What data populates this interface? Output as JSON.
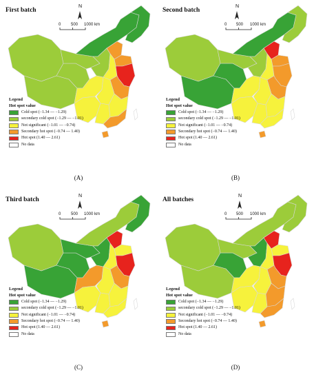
{
  "panels": [
    {
      "title": "First batch",
      "label": "(A)"
    },
    {
      "title": "Second batch",
      "label": "(B)"
    },
    {
      "title": "Third batch",
      "label": "(C)"
    },
    {
      "title": "All batches",
      "label": "(D)"
    }
  ],
  "north_label": "N",
  "scale_labels": [
    "0",
    "500",
    "1000 km"
  ],
  "legend": {
    "heading": "Legend",
    "subheading": "Hot spot value",
    "items": [
      {
        "label": "Cold spot (−1.34 — −1.29)",
        "color": "#38a336"
      },
      {
        "label": "secondary cold spot (−1.29 — −1.01)",
        "color": "#9ccc3a"
      },
      {
        "label": "Not significant (−1.01 — −0.74)",
        "color": "#f6f23c"
      },
      {
        "label": "Secondary hot spot (−0.74 — 1.40)",
        "color": "#f39a2b"
      },
      {
        "label": "Hot spot (1.40 — 2.61)",
        "color": "#e7231d"
      },
      {
        "label": "No data",
        "color": "#ffffff"
      }
    ]
  },
  "colors": {
    "cold": "#38a336",
    "secondary_cold": "#9ccc3a",
    "not_significant": "#f6f23c",
    "secondary_hot": "#f39a2b",
    "hot": "#e7231d",
    "no_data": "#ffffff",
    "border": "#d8d8d8"
  }
}
